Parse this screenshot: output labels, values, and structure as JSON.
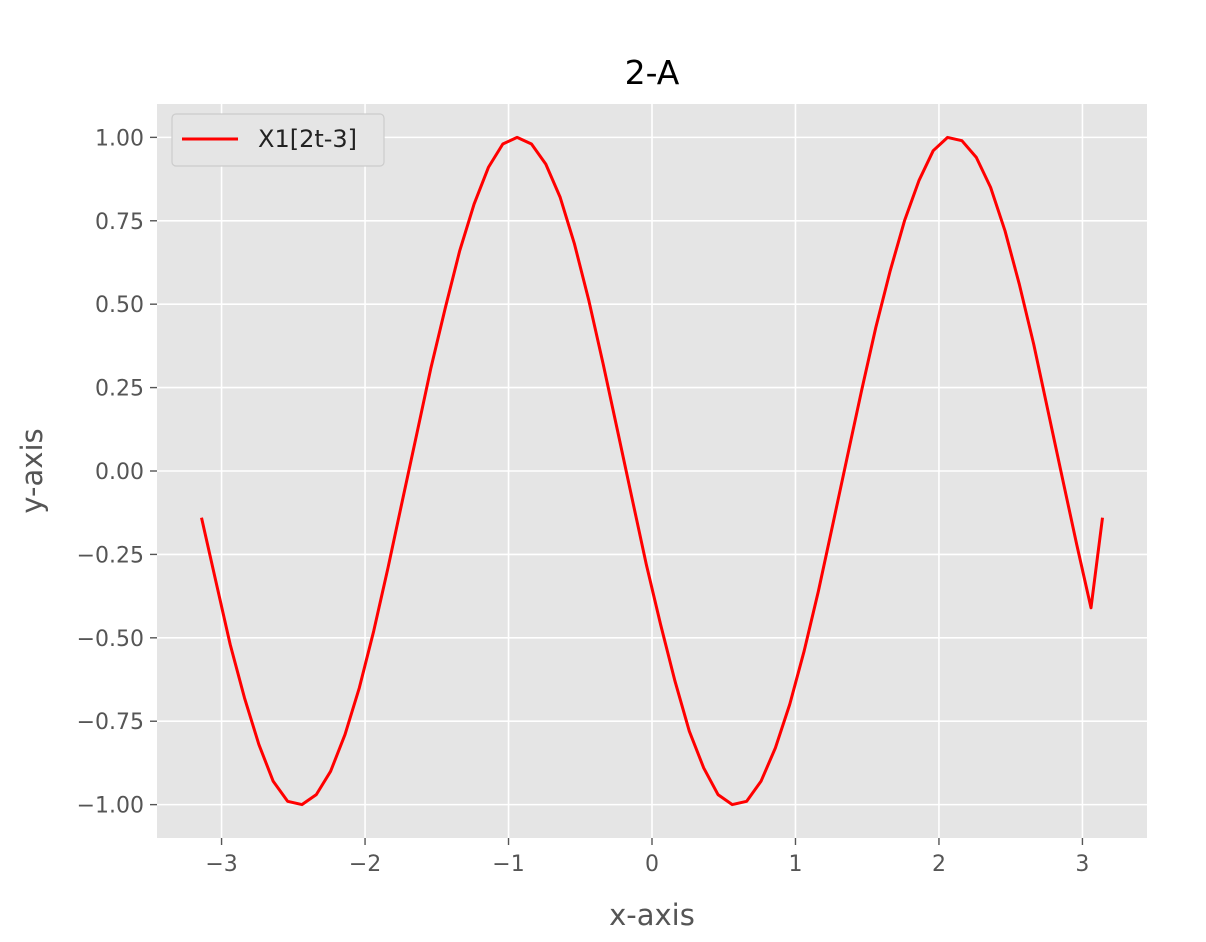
{
  "chart_data": {
    "type": "line",
    "title": "2-A",
    "xlabel": "x-axis",
    "ylabel": "y-axis",
    "xlim": [
      -3.45,
      3.45
    ],
    "ylim": [
      -1.1,
      1.1
    ],
    "x_ticks": [
      -3,
      -2,
      -1,
      0,
      1,
      2,
      3
    ],
    "x_tick_labels": [
      "−3",
      "−2",
      "−1",
      "0",
      "1",
      "2",
      "3"
    ],
    "y_ticks": [
      1.0,
      0.75,
      0.5,
      0.25,
      0.0,
      -0.25,
      -0.5,
      -0.75,
      -1.0
    ],
    "y_tick_labels": [
      "1.00",
      "0.75",
      "0.50",
      "0.25",
      "0.00",
      "−0.25",
      "−0.50",
      "−0.75",
      "−1.00"
    ],
    "grid": true,
    "legend_position": "top-left",
    "background": "#e5e5e5",
    "series": [
      {
        "name": "X1[2t-3]",
        "color": "#ff0000",
        "x": [
          -3.14,
          -3.04,
          -2.94,
          -2.84,
          -2.74,
          -2.64,
          -2.54,
          -2.44,
          -2.34,
          -2.24,
          -2.14,
          -2.04,
          -1.94,
          -1.84,
          -1.74,
          -1.64,
          -1.54,
          -1.44,
          -1.34,
          -1.24,
          -1.14,
          -1.04,
          -0.94,
          -0.84,
          -0.74,
          -0.64,
          -0.54,
          -0.44,
          -0.34,
          -0.24,
          -0.14,
          -0.04,
          0.06,
          0.16,
          0.26,
          0.36,
          0.46,
          0.56,
          0.66,
          0.76,
          0.86,
          0.96,
          1.06,
          1.16,
          1.26,
          1.36,
          1.46,
          1.56,
          1.66,
          1.76,
          1.86,
          1.96,
          2.06,
          2.16,
          2.26,
          2.36,
          2.46,
          2.56,
          2.66,
          2.76,
          2.86,
          2.96,
          3.06,
          3.14
        ],
        "y": [
          -0.14,
          -0.33,
          -0.52,
          -0.68,
          -0.82,
          -0.93,
          -0.99,
          -1.0,
          -0.97,
          -0.9,
          -0.79,
          -0.65,
          -0.48,
          -0.29,
          -0.09,
          0.11,
          0.31,
          0.49,
          0.66,
          0.8,
          0.91,
          0.98,
          1.0,
          0.98,
          0.92,
          0.82,
          0.68,
          0.51,
          0.32,
          0.12,
          -0.08,
          -0.28,
          -0.46,
          -0.63,
          -0.78,
          -0.89,
          -0.97,
          -1.0,
          -0.99,
          -0.93,
          -0.83,
          -0.7,
          -0.54,
          -0.36,
          -0.16,
          0.04,
          0.24,
          0.43,
          0.6,
          0.75,
          0.87,
          0.96,
          1.0,
          0.99,
          0.94,
          0.85,
          0.72,
          0.56,
          0.38,
          0.18,
          -0.02,
          -0.22,
          -0.41,
          -0.14
        ]
      }
    ]
  }
}
